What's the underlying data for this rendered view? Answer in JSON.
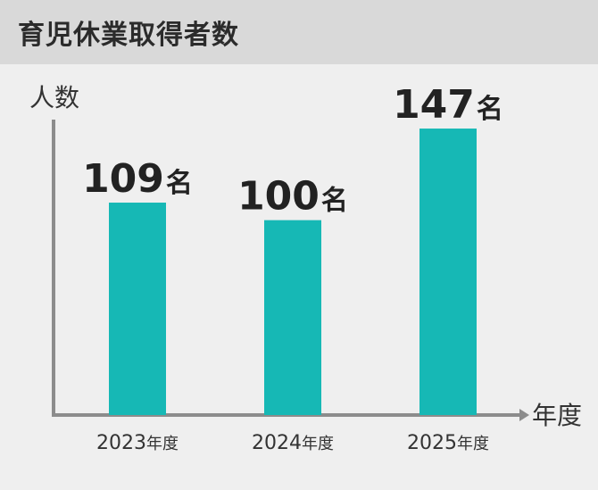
{
  "page": {
    "title": "育児休業取得者数"
  },
  "chart_data": {
    "type": "bar",
    "title": "育児休業取得者数",
    "ylabel": "人数",
    "xlabel": "年度",
    "categories": [
      "2023",
      "2024",
      "2025"
    ],
    "category_suffix": "年度",
    "values": [
      109,
      100,
      147
    ],
    "value_suffix": "名",
    "value_labels": [
      "109",
      "100",
      "147"
    ],
    "ylim": [
      0,
      180
    ],
    "grid": false,
    "colors": {
      "bar": "#16b8b5",
      "axis": "#8c8c8c",
      "text": "#222222"
    }
  }
}
